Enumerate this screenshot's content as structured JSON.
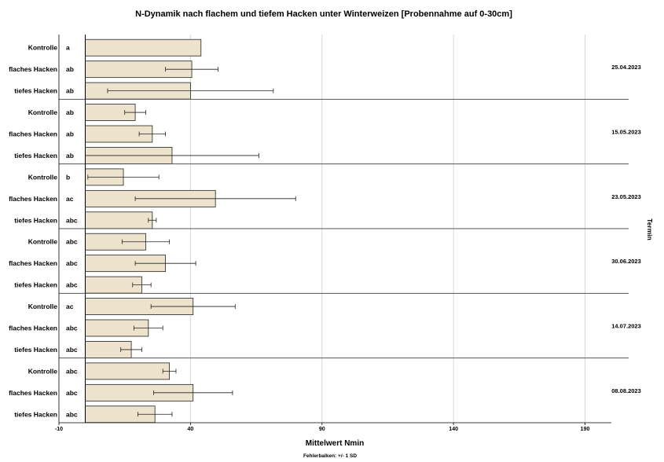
{
  "chart_data": {
    "type": "bar",
    "orientation": "horizontal",
    "title": "N-Dynamik nach flachem und tiefem Hacken unter Winterweizen [Probennahme auf 0-30cm]",
    "xlabel": "Mittelwert Nmin",
    "facet_label": "Termin",
    "footnote": "Fehlerbalken: +/- 1 SD",
    "xlim": [
      -10,
      200
    ],
    "xticks": [
      -10,
      40,
      90,
      140,
      190
    ],
    "grid": true,
    "bar_color": "#ede3cc",
    "categories": [
      "Kontrolle",
      "flaches Hacken",
      "tiefes Hacken"
    ],
    "panels": [
      {
        "termin": "25.04.2023",
        "bars": [
          {
            "category": "Kontrolle",
            "letter": "a",
            "mean": 44,
            "sd": null
          },
          {
            "category": "flaches Hacken",
            "letter": "ab",
            "mean": 40.5,
            "sd": 10
          },
          {
            "category": "tiefes Hacken",
            "letter": "ab",
            "mean": 40,
            "sd": 31.5
          }
        ]
      },
      {
        "termin": "15.05.2023",
        "bars": [
          {
            "category": "Kontrolle",
            "letter": "ab",
            "mean": 19,
            "sd": 4
          },
          {
            "category": "flaches Hacken",
            "letter": "ab",
            "mean": 25.5,
            "sd": 5
          },
          {
            "category": "tiefes Hacken",
            "letter": "ab",
            "mean": 33,
            "sd": 33
          }
        ]
      },
      {
        "termin": "23.05.2023",
        "bars": [
          {
            "category": "Kontrolle",
            "letter": "b",
            "mean": 14.5,
            "sd": 13.5
          },
          {
            "category": "flaches Hacken",
            "letter": "ac",
            "mean": 49.5,
            "sd": 30.5
          },
          {
            "category": "tiefes Hacken",
            "letter": "abc",
            "mean": 25.5,
            "sd": 1.5
          }
        ]
      },
      {
        "termin": "30.06.2023",
        "bars": [
          {
            "category": "Kontrolle",
            "letter": "abc",
            "mean": 23,
            "sd": 9
          },
          {
            "category": "flaches Hacken",
            "letter": "abc",
            "mean": 30.5,
            "sd": 11.5
          },
          {
            "category": "tiefes Hacken",
            "letter": "abc",
            "mean": 21.5,
            "sd": 3.5
          }
        ]
      },
      {
        "termin": "14.07.2023",
        "bars": [
          {
            "category": "Kontrolle",
            "letter": "ac",
            "mean": 41,
            "sd": 16
          },
          {
            "category": "flaches Hacken",
            "letter": "abc",
            "mean": 24,
            "sd": 5.5
          },
          {
            "category": "tiefes Hacken",
            "letter": "abc",
            "mean": 17.5,
            "sd": 4
          }
        ]
      },
      {
        "termin": "08.08.2023",
        "bars": [
          {
            "category": "Kontrolle",
            "letter": "abc",
            "mean": 32,
            "sd": 2.5
          },
          {
            "category": "flaches Hacken",
            "letter": "abc",
            "mean": 41,
            "sd": 15
          },
          {
            "category": "tiefes Hacken",
            "letter": "abc",
            "mean": 26.5,
            "sd": 6.5
          }
        ]
      }
    ]
  }
}
